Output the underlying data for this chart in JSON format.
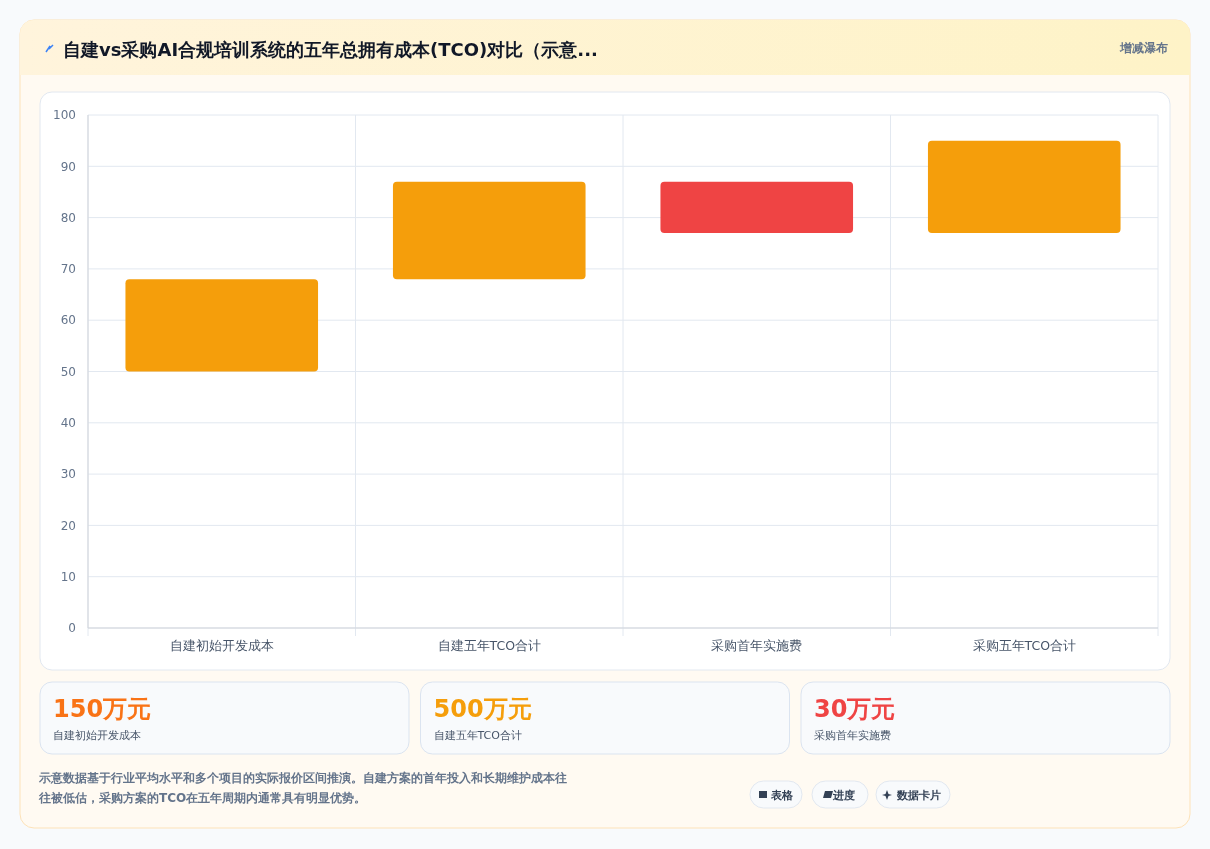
{
  "chart_data": {
    "type": "bar",
    "title": "自建vs采购AI合规培训系统的五年总拥有成本(TCO)对比（示意...",
    "subtitle": "增减瀑布",
    "categories": [
      "自建初始开发成本",
      "自建五年TCO合计",
      "采购首年实施费",
      "采购五年TCO合计"
    ],
    "values": [
      18,
      19,
      10,
      18
    ],
    "base": [
      50,
      68,
      77,
      77
    ],
    "colors": [
      "#f59e0b",
      "#f59e0b",
      "#ef4444",
      "#f59e0b"
    ],
    "ylim": [
      0,
      100
    ],
    "yticks": [
      0,
      10,
      20,
      30,
      40,
      50,
      60,
      70,
      80,
      90,
      100
    ],
    "grid": true,
    "annotations": [
      "150万元",
      "自建初始开发成本",
      "500万元",
      "自建五年TCO合计",
      "30万元",
      "采购首年实施费",
      "示意数据基于行业平均水平和多个项目的实际报价区间推演。自建方案的首年投入和长期维护成本往往被低估，采购方案的TCO在五年周期内通常具有明显优势。",
      "表格",
      "进度",
      "数据卡片"
    ]
  }
}
